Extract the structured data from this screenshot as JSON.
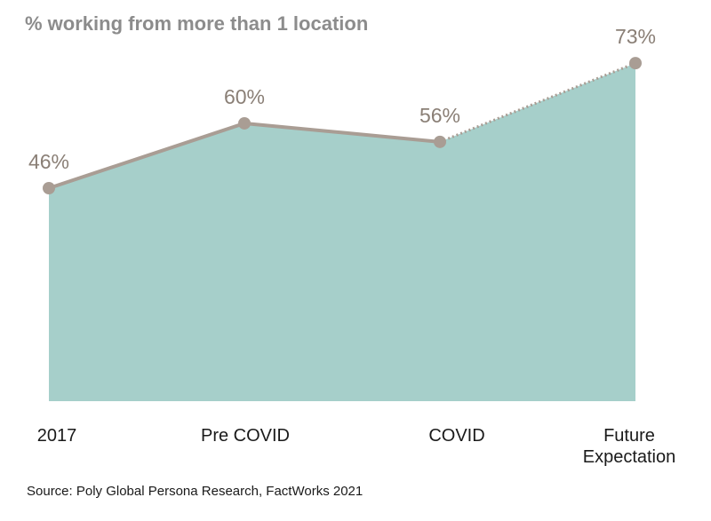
{
  "chart_data": {
    "type": "area",
    "title": "% working from more than 1 location",
    "categories": [
      "2017",
      "Pre COVID",
      "COVID",
      "Future Expectation"
    ],
    "category_lines": [
      [
        "2017"
      ],
      [
        "Pre COVID"
      ],
      [
        "COVID"
      ],
      [
        "Future",
        "Expectation"
      ]
    ],
    "values": [
      46,
      60,
      56,
      73
    ],
    "data_labels": [
      "46%",
      "60%",
      "56%",
      "73%"
    ],
    "projected_last_segment": true,
    "colors": {
      "fill": "#a6cfca",
      "line": "#a99d94",
      "marker": "#a99d94",
      "label": "#8a7f76"
    },
    "grid": false,
    "legend": "none",
    "source": "Source: Poly Global Persona Research, FactWorks 2021"
  }
}
